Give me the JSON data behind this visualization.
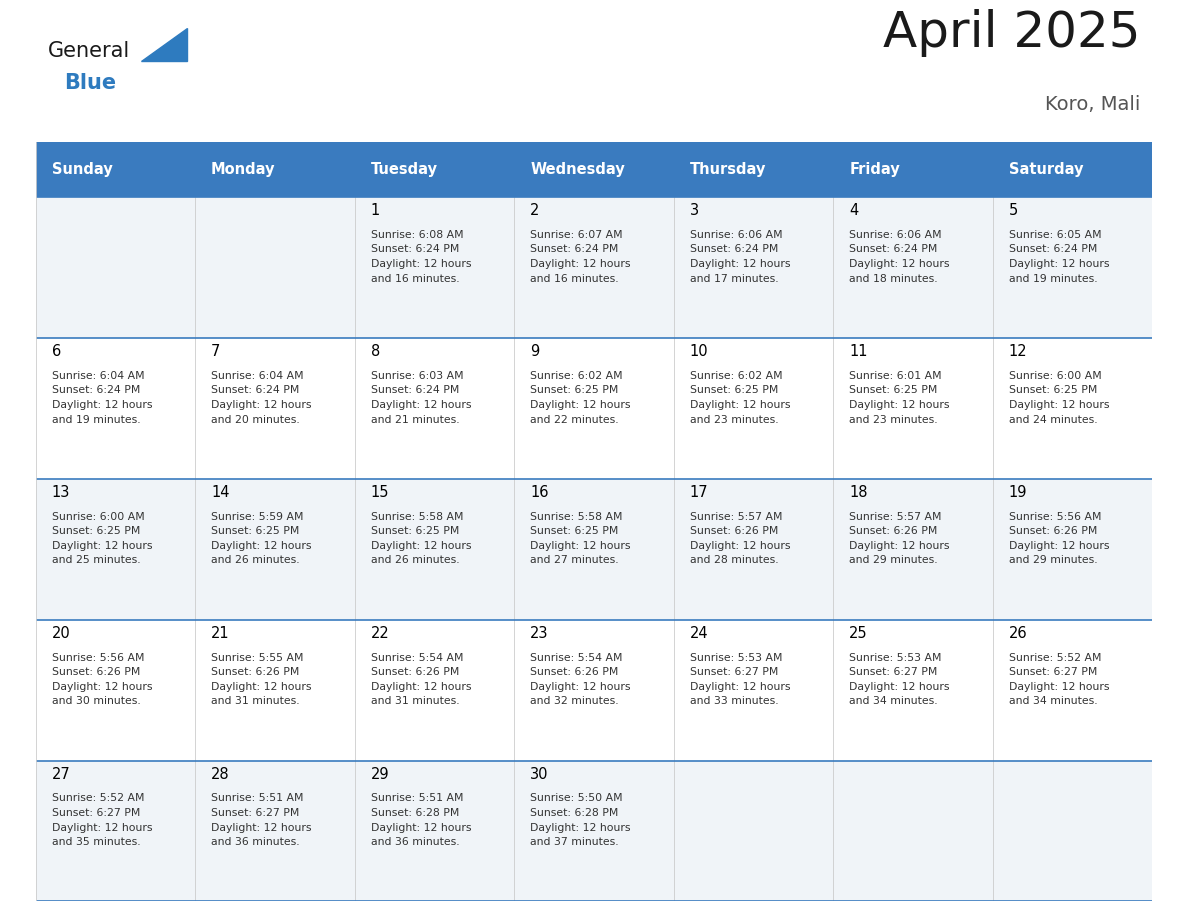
{
  "title": "April 2025",
  "subtitle": "Koro, Mali",
  "days_of_week": [
    "Sunday",
    "Monday",
    "Tuesday",
    "Wednesday",
    "Thursday",
    "Friday",
    "Saturday"
  ],
  "header_bg": "#3a7bbf",
  "header_text": "#ffffff",
  "row_bg_odd": "#f0f4f8",
  "row_bg_even": "#ffffff",
  "cell_border_color": "#3a7bbf",
  "cell_divider_color": "#cccccc",
  "day_num_color": "#000000",
  "cell_text_color": "#333333",
  "title_color": "#1a1a1a",
  "subtitle_color": "#555555",
  "logo_general_color": "#1a1a1a",
  "logo_blue_color": "#2e7bbf",
  "calendar_data": [
    [
      null,
      null,
      {
        "day": 1,
        "sunrise": "6:08 AM",
        "sunset": "6:24 PM",
        "daylight": "12 hours and 16 minutes"
      },
      {
        "day": 2,
        "sunrise": "6:07 AM",
        "sunset": "6:24 PM",
        "daylight": "12 hours and 16 minutes"
      },
      {
        "day": 3,
        "sunrise": "6:06 AM",
        "sunset": "6:24 PM",
        "daylight": "12 hours and 17 minutes"
      },
      {
        "day": 4,
        "sunrise": "6:06 AM",
        "sunset": "6:24 PM",
        "daylight": "12 hours and 18 minutes"
      },
      {
        "day": 5,
        "sunrise": "6:05 AM",
        "sunset": "6:24 PM",
        "daylight": "12 hours and 19 minutes"
      }
    ],
    [
      {
        "day": 6,
        "sunrise": "6:04 AM",
        "sunset": "6:24 PM",
        "daylight": "12 hours and 19 minutes"
      },
      {
        "day": 7,
        "sunrise": "6:04 AM",
        "sunset": "6:24 PM",
        "daylight": "12 hours and 20 minutes"
      },
      {
        "day": 8,
        "sunrise": "6:03 AM",
        "sunset": "6:24 PM",
        "daylight": "12 hours and 21 minutes"
      },
      {
        "day": 9,
        "sunrise": "6:02 AM",
        "sunset": "6:25 PM",
        "daylight": "12 hours and 22 minutes"
      },
      {
        "day": 10,
        "sunrise": "6:02 AM",
        "sunset": "6:25 PM",
        "daylight": "12 hours and 23 minutes"
      },
      {
        "day": 11,
        "sunrise": "6:01 AM",
        "sunset": "6:25 PM",
        "daylight": "12 hours and 23 minutes"
      },
      {
        "day": 12,
        "sunrise": "6:00 AM",
        "sunset": "6:25 PM",
        "daylight": "12 hours and 24 minutes"
      }
    ],
    [
      {
        "day": 13,
        "sunrise": "6:00 AM",
        "sunset": "6:25 PM",
        "daylight": "12 hours and 25 minutes"
      },
      {
        "day": 14,
        "sunrise": "5:59 AM",
        "sunset": "6:25 PM",
        "daylight": "12 hours and 26 minutes"
      },
      {
        "day": 15,
        "sunrise": "5:58 AM",
        "sunset": "6:25 PM",
        "daylight": "12 hours and 26 minutes"
      },
      {
        "day": 16,
        "sunrise": "5:58 AM",
        "sunset": "6:25 PM",
        "daylight": "12 hours and 27 minutes"
      },
      {
        "day": 17,
        "sunrise": "5:57 AM",
        "sunset": "6:26 PM",
        "daylight": "12 hours and 28 minutes"
      },
      {
        "day": 18,
        "sunrise": "5:57 AM",
        "sunset": "6:26 PM",
        "daylight": "12 hours and 29 minutes"
      },
      {
        "day": 19,
        "sunrise": "5:56 AM",
        "sunset": "6:26 PM",
        "daylight": "12 hours and 29 minutes"
      }
    ],
    [
      {
        "day": 20,
        "sunrise": "5:56 AM",
        "sunset": "6:26 PM",
        "daylight": "12 hours and 30 minutes"
      },
      {
        "day": 21,
        "sunrise": "5:55 AM",
        "sunset": "6:26 PM",
        "daylight": "12 hours and 31 minutes"
      },
      {
        "day": 22,
        "sunrise": "5:54 AM",
        "sunset": "6:26 PM",
        "daylight": "12 hours and 31 minutes"
      },
      {
        "day": 23,
        "sunrise": "5:54 AM",
        "sunset": "6:26 PM",
        "daylight": "12 hours and 32 minutes"
      },
      {
        "day": 24,
        "sunrise": "5:53 AM",
        "sunset": "6:27 PM",
        "daylight": "12 hours and 33 minutes"
      },
      {
        "day": 25,
        "sunrise": "5:53 AM",
        "sunset": "6:27 PM",
        "daylight": "12 hours and 34 minutes"
      },
      {
        "day": 26,
        "sunrise": "5:52 AM",
        "sunset": "6:27 PM",
        "daylight": "12 hours and 34 minutes"
      }
    ],
    [
      {
        "day": 27,
        "sunrise": "5:52 AM",
        "sunset": "6:27 PM",
        "daylight": "12 hours and 35 minutes"
      },
      {
        "day": 28,
        "sunrise": "5:51 AM",
        "sunset": "6:27 PM",
        "daylight": "12 hours and 36 minutes"
      },
      {
        "day": 29,
        "sunrise": "5:51 AM",
        "sunset": "6:28 PM",
        "daylight": "12 hours and 36 minutes"
      },
      {
        "day": 30,
        "sunrise": "5:50 AM",
        "sunset": "6:28 PM",
        "daylight": "12 hours and 37 minutes"
      },
      null,
      null,
      null
    ]
  ]
}
